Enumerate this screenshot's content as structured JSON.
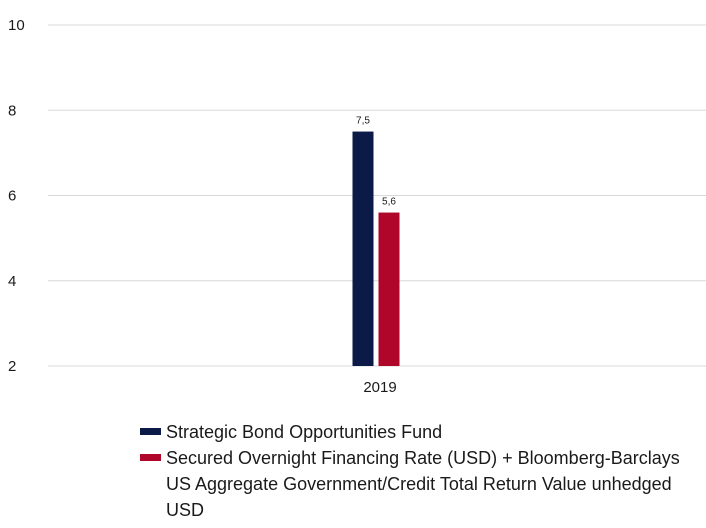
{
  "chart_data": {
    "type": "bar",
    "categories": [
      "2019"
    ],
    "series": [
      {
        "name": "Strategic Bond Opportunities Fund",
        "values": [
          7.5
        ],
        "labels": [
          "7,5"
        ],
        "color": "#0c1a48"
      },
      {
        "name": "Secured Overnight Financing Rate (USD) + Bloomberg-Barclays US Aggregate Government/Credit Total Return Value unhedged USD",
        "values": [
          5.6
        ],
        "labels": [
          "5,6"
        ],
        "color": "#b0062a"
      }
    ],
    "ylim": [
      2,
      10
    ],
    "yticks": [
      2,
      4,
      6,
      8,
      10
    ],
    "grid": true,
    "legend_position": "bottom",
    "gridline_color": "#d9d9d9"
  }
}
